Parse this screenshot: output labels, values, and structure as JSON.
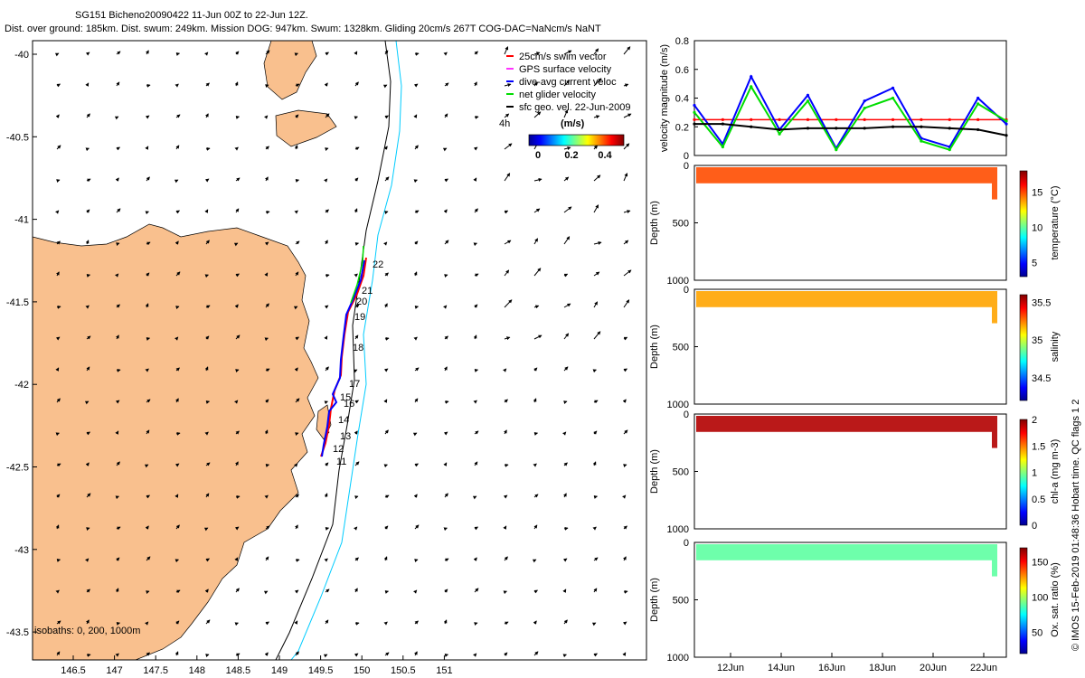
{
  "header": {
    "line1": "SG151 Bicheno20090422 11-Jun 00Z to 22-Jun 12Z.",
    "line2": "Dist. over ground: 185km. Dist. swum: 249km. Mission DOG: 947km. Swum: 1328km. Gliding 20cm/s 267T COG-DAC=NaNcm/s NaNT"
  },
  "credit": "© IMOS 15-Feb-2019 01:48:36 Hobart time. QC flags 1  2",
  "colors": {
    "land": "#F9C08E",
    "swim": "#ff0000",
    "gps": "#ff33ff",
    "dac": "#0000ff",
    "net": "#00dd00",
    "geo": "#000000",
    "isobath1000": "#00ccff"
  },
  "map": {
    "xticks": [
      "146.5",
      "147",
      "147.5",
      "148",
      "148.5",
      "149",
      "149.5",
      "150",
      "150.5",
      "151"
    ],
    "yticks": [
      "-40",
      "-40.5",
      "-41",
      "-41.5",
      "-42",
      "-42.5",
      "-43",
      "-43.5"
    ],
    "isobath_label": "isobaths: 0, 200, 1000m",
    "time_label": "4h",
    "day_labels": [
      "22",
      "21",
      "20",
      "19",
      "18",
      "17",
      "16",
      "15",
      "14",
      "13",
      "12",
      "11"
    ],
    "legend": [
      {
        "label": "25cm/s swim vector",
        "color": "#ff0000"
      },
      {
        "label": "GPS surface velocity",
        "color": "#ff33ff"
      },
      {
        "label": "dive-avg current veloc",
        "color": "#0000ff"
      },
      {
        "label": "net glider velocity",
        "color": "#00dd00"
      },
      {
        "label": "sfc geo. vel. 22-Jun-2009",
        "color": "#000000"
      }
    ],
    "colorbar": {
      "title": "(m/s)",
      "ticks": [
        "0",
        "0.2",
        "0.4"
      ]
    }
  },
  "chart_data": [
    {
      "type": "line",
      "ylabel": "velocity magnitude (m/s)",
      "ylim": [
        0,
        0.8
      ],
      "yticks": [
        "0",
        "0.2",
        "0.4",
        "0.6",
        "0.8"
      ],
      "x": [
        "11Jun",
        "12Jun",
        "13Jun",
        "14Jun",
        "15Jun",
        "16Jun",
        "17Jun",
        "18Jun",
        "19Jun",
        "20Jun",
        "21Jun",
        "22Jun"
      ],
      "series": [
        {
          "name": "25cm/s swim vector",
          "color": "#ff0000",
          "values": [
            0.25,
            0.25,
            0.25,
            0.25,
            0.25,
            0.25,
            0.25,
            0.25,
            0.25,
            0.25,
            0.25,
            0.25
          ]
        },
        {
          "name": "dive-avg current veloc",
          "color": "#0000ff",
          "values": [
            0.35,
            0.08,
            0.55,
            0.18,
            0.42,
            0.05,
            0.38,
            0.47,
            0.12,
            0.06,
            0.4,
            0.22
          ]
        },
        {
          "name": "net glider velocity",
          "color": "#00dd00",
          "values": [
            0.3,
            0.06,
            0.48,
            0.15,
            0.38,
            0.04,
            0.33,
            0.4,
            0.1,
            0.04,
            0.36,
            0.24
          ]
        },
        {
          "name": "sfc geo. vel. 22-Jun-2009",
          "color": "#000000",
          "values": [
            0.22,
            0.22,
            0.2,
            0.18,
            0.19,
            0.19,
            0.19,
            0.2,
            0.2,
            0.19,
            0.18,
            0.14
          ]
        }
      ]
    },
    {
      "type": "heatmap",
      "ylabel": "Depth (m)",
      "ylim": [
        0,
        1000
      ],
      "yticks": [
        "0",
        "500",
        "1000"
      ],
      "colorbar_label": "temperature (°C)",
      "colorbar_ticks": [
        "5",
        "10",
        "15"
      ],
      "color_range": [
        3,
        18
      ],
      "value": 15
    },
    {
      "type": "heatmap",
      "ylabel": "Depth (m)",
      "ylim": [
        0,
        1000
      ],
      "yticks": [
        "0",
        "500",
        "1000"
      ],
      "colorbar_label": "salinity",
      "colorbar_ticks": [
        "34.5",
        "35",
        "35.5"
      ],
      "color_range": [
        34.2,
        35.6
      ],
      "value": 35.2
    },
    {
      "type": "heatmap",
      "ylabel": "Depth (m)",
      "ylim": [
        0,
        1000
      ],
      "yticks": [
        "0",
        "500",
        "1000"
      ],
      "colorbar_label": "chl-a (mg m-3)",
      "colorbar_ticks": [
        "0",
        "0.5",
        "1",
        "1.5",
        "2"
      ],
      "color_range": [
        0,
        2
      ],
      "value": 1.9
    },
    {
      "type": "heatmap",
      "ylabel": "Depth (m)",
      "ylim": [
        0,
        1000
      ],
      "yticks": [
        "0",
        "500",
        "1000"
      ],
      "colorbar_label": "Ox. sat. ratio (%)",
      "colorbar_ticks": [
        "50",
        "100",
        "150"
      ],
      "color_range": [
        20,
        170
      ],
      "value": 90
    }
  ],
  "time_axis": [
    "12Jun",
    "14Jun",
    "16Jun",
    "18Jun",
    "20Jun",
    "22Jun"
  ]
}
